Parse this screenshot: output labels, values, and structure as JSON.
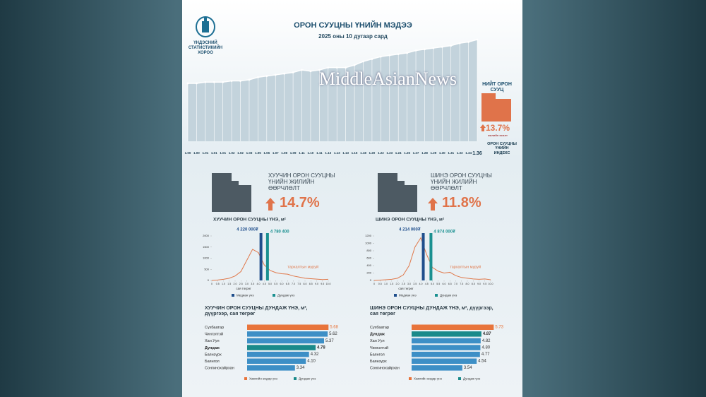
{
  "header": {
    "org": "ҮНДЭСНИЙ СТАТИСТИКИЙН ХОРОО",
    "title": "ОРОН СУУЦНЫ ҮНИЙН МЭДЭЭ",
    "subtitle": "2025 оны 10 дугаар сард",
    "watermark": "MiddleAsianNews"
  },
  "summary": {
    "label": "НИЙТ ОРОН СУУЦ",
    "value": "13.7%",
    "caption": "жилийн өсөлт",
    "index_label": "ОРОН СУУЦНЫ ҮНИЙН ИНДЕКС"
  },
  "changes": [
    {
      "label": "ХУУЧИН ОРОН СУУЦНЫ ҮНИЙН ЖИЛИЙН ӨӨРЧЛӨЛТ",
      "value": "14.7%"
    },
    {
      "label": "ШИНЭ ОРОН СУУЦНЫ ҮНИЙН ЖИЛИЙН ӨӨРЧЛӨЛТ",
      "value": "11.8%"
    }
  ],
  "chart_data": [
    {
      "type": "line",
      "color": "#ffffff",
      "values": [
        1.0,
        1.0,
        1.01,
        1.01,
        1.01,
        1.02,
        1.02,
        1.03,
        1.05,
        1.06,
        1.07,
        1.08,
        1.09,
        1.11,
        1.1,
        1.11,
        1.13,
        1.13,
        1.13,
        1.15,
        1.18,
        1.2,
        1.22,
        1.23,
        1.24,
        1.25,
        1.27,
        1.28,
        1.29,
        1.3,
        1.31,
        1.33,
        1.34,
        1.36
      ],
      "value_labels": [
        "1.00",
        "1.00",
        "1.01",
        "1.01",
        "1.01",
        "1.02",
        "1.02",
        "1.03",
        "1.05",
        "1.06",
        "1.07",
        "1.08",
        "1.09",
        "1.11",
        "1.10",
        "1.11",
        "1.13",
        "1.13",
        "1.13",
        "1.15",
        "1.18",
        "1.20",
        "1.22",
        "1.23",
        "1.24",
        "1.25",
        "1.27",
        "1.28",
        "1.29",
        "1.30",
        "1.31",
        "1.33",
        "1.34",
        "1.36"
      ]
    },
    {
      "type": "distribution",
      "title": "ХУУЧИН ОРОН СУУЦНЫ ҮНЭ, м²",
      "x_label": "сая төгрөг",
      "xlim": [
        0,
        10
      ],
      "ylim": [
        0,
        2000
      ],
      "yticks": [
        0,
        500,
        1000,
        1500,
        2000
      ],
      "xticks": [
        0,
        0.5,
        {
          "value": 1,
          "label": "1.0"
        },
        1.5,
        {
          "value": 2,
          "label": "2.0"
        },
        2.5,
        {
          "value": 3,
          "label": "3.0"
        },
        3.5,
        {
          "value": 4,
          "label": "4.0"
        },
        4.5,
        {
          "value": 5,
          "label": "5.0"
        },
        5.5,
        {
          "value": 6,
          "label": "6.0"
        },
        6.5,
        {
          "value": 7,
          "label": "7.0"
        },
        7.5,
        {
          "value": 8,
          "label": "8.0"
        },
        8.5,
        {
          "value": 9,
          "label": "9.0"
        },
        9.5,
        {
          "value": 10,
          "label": "10.0"
        }
      ],
      "x": [
        0,
        0.5,
        1,
        1.5,
        2,
        2.5,
        3,
        3.5,
        4,
        4.5,
        5,
        5.5,
        6,
        6.5,
        7,
        7.5,
        8,
        8.5,
        9,
        9.5,
        10
      ],
      "series": [
        {
          "name": "тархалтын муруй",
          "color": "#e0784a",
          "values": [
            0,
            20,
            50,
            100,
            200,
            400,
            900,
            1400,
            1250,
            700,
            450,
            350,
            300,
            280,
            200,
            150,
            100,
            80,
            60,
            40,
            50
          ]
        }
      ],
      "median": {
        "name": "Медиан үнэ",
        "value": 4.22,
        "label": "4 220 000₮",
        "color": "#1f4e8c"
      },
      "mean": {
        "name": "Дундаж үнэ",
        "value": 4.78,
        "label": "4 780 400",
        "color": "#1a9090"
      }
    },
    {
      "type": "distribution",
      "title": "ШИНЭ ОРОН СУУЦНЫ ҮНЭ, м²",
      "x_label": "сая төгрөг",
      "xlim": [
        0,
        10
      ],
      "ylim": [
        0,
        1200
      ],
      "yticks": [
        0,
        200,
        400,
        600,
        800,
        1000,
        1200
      ],
      "xticks": [
        0,
        0.5,
        {
          "value": 1,
          "label": "1.0"
        },
        1.5,
        {
          "value": 2,
          "label": "2.0"
        },
        2.5,
        {
          "value": 3,
          "label": "3.0"
        },
        3.5,
        {
          "value": 4,
          "label": "4.0"
        },
        4.5,
        {
          "value": 5,
          "label": "5.0"
        },
        5.5,
        {
          "value": 6,
          "label": "6.0"
        },
        6.5,
        {
          "value": 7,
          "label": "7.0"
        },
        7.5,
        {
          "value": 8,
          "label": "8.0"
        },
        8.5,
        {
          "value": 9,
          "label": "9.0"
        },
        9.5,
        {
          "value": 10,
          "label": "10.0"
        }
      ],
      "x": [
        0,
        0.5,
        1,
        1.5,
        2,
        2.5,
        3,
        3.5,
        4,
        4.5,
        5,
        5.5,
        6,
        6.5,
        7,
        7.5,
        8,
        8.5,
        9,
        9.5,
        10
      ],
      "series": [
        {
          "name": "тархалтын муруй",
          "color": "#e0784a",
          "values": [
            0,
            10,
            20,
            30,
            60,
            150,
            400,
            900,
            1150,
            700,
            350,
            250,
            200,
            220,
            130,
            80,
            60,
            40,
            30,
            40,
            20
          ]
        }
      ],
      "median": {
        "name": "Медиан үнэ",
        "value": 4.214,
        "label": "4 214 000₮",
        "color": "#1f4e8c"
      },
      "mean": {
        "name": "Дундаж үнэ",
        "value": 4.874,
        "label": "4 874 000₮",
        "color": "#1a9090"
      }
    },
    {
      "type": "hbar",
      "title": "ХУУЧИН ОРОН СУУЦНЫ ДУНДАЖ ҮНЭ, м², дүүргээр, сая төгрөг",
      "categories": [
        "Сүхбаатар",
        "Чингэлтэй",
        "Хан Уул",
        "Дундаж",
        "Баянзүрх",
        "Баянгол",
        "Сонгинохайрхан"
      ],
      "values": [
        5.68,
        5.62,
        5.37,
        4.78,
        4.32,
        4.1,
        3.34
      ],
      "value_labels": [
        "5.68",
        "5.62",
        "5.37",
        "4.78",
        "4.32",
        "4.10",
        "3.34"
      ],
      "colors": [
        "#e8743b",
        "#3d8fc6",
        "#3d8fc6",
        "#1a8a8a",
        "#3d8fc6",
        "#3d8fc6",
        "#3d8fc6"
      ],
      "legend": [
        {
          "name": "Хамгийн өндөр үнэ",
          "color": "#e8743b"
        },
        {
          "name": "Дундаж үнэ",
          "color": "#1a8a8a"
        }
      ]
    },
    {
      "type": "hbar",
      "title": "ШИНЭ ОРОН СУУЦНЫ ДУНДАЖ ҮНЭ, м², дүүргээр, сая төгрөг",
      "categories": [
        "Сүхбаатар",
        "Дундаж",
        "Хан Уул",
        "Чингэлтэй",
        "Баянгол",
        "Баянзүрх",
        "Сонгинохайрхан"
      ],
      "values": [
        5.73,
        4.87,
        4.82,
        4.8,
        4.77,
        4.54,
        3.54
      ],
      "value_labels": [
        "5.73",
        "4.87",
        "4.82",
        "4.80",
        "4.77",
        "4.54",
        "3.54"
      ],
      "colors": [
        "#e8743b",
        "#1a8a8a",
        "#3d8fc6",
        "#3d8fc6",
        "#3d8fc6",
        "#3d8fc6",
        "#3d8fc6"
      ],
      "legend": [
        {
          "name": "Хамгийн өндөр үнэ",
          "color": "#e8743b"
        },
        {
          "name": "Дундаж үнэ",
          "color": "#1a8a8a"
        }
      ]
    }
  ]
}
